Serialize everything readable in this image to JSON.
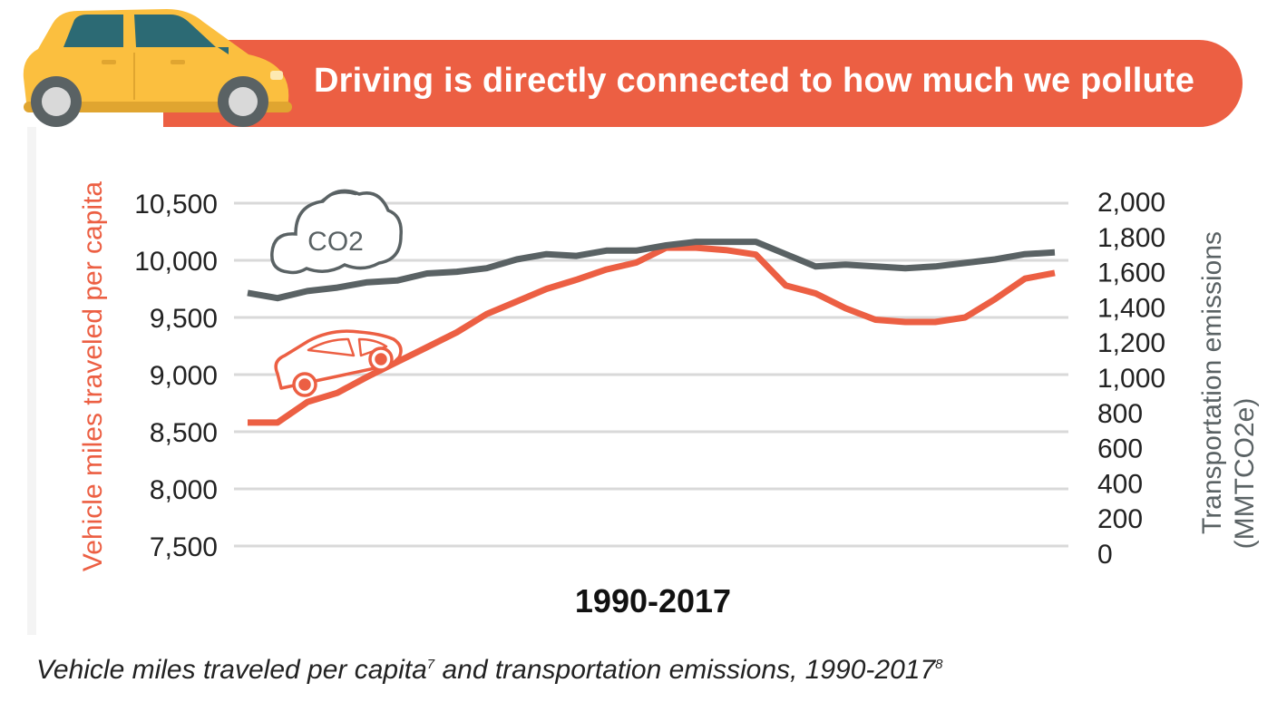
{
  "banner": {
    "title": "Driving is directly connected to how much we pollute"
  },
  "caption": {
    "text": "Vehicle miles traveled per capita",
    "sup1": "7",
    "text2": " and transportation emissions, 1990-2017",
    "sup2": "8"
  },
  "icons": {
    "car_hero": "yellow-car-icon",
    "cloud": "co2-cloud-icon",
    "car_outline": "car-outline-icon",
    "co2_text": "CO2"
  },
  "colors": {
    "vmt": "#ec5f43",
    "emissions": "#5a6264",
    "banner": "#ec5f43",
    "grid": "#d9d9d9",
    "car_body": "#fbbf3f"
  },
  "chart_data": {
    "type": "line",
    "xlabel": "1990-2017",
    "x": [
      1990,
      1991,
      1992,
      1993,
      1994,
      1995,
      1996,
      1997,
      1998,
      1999,
      2000,
      2001,
      2002,
      2003,
      2004,
      2005,
      2006,
      2007,
      2008,
      2009,
      2010,
      2011,
      2012,
      2013,
      2014,
      2015,
      2016,
      2017
    ],
    "left_axis": {
      "label": "Vehicle miles traveled per capita",
      "ylim": [
        7500,
        10500
      ],
      "ticks": [
        "10,500",
        "10,000",
        "9,500",
        "9,000",
        "8,500",
        "8,000",
        "7,500"
      ],
      "tick_values": [
        10500,
        10000,
        9500,
        9000,
        8500,
        8000,
        7500
      ]
    },
    "right_axis": {
      "label": "Transportation emissions",
      "label2": "(MMTCO2e)",
      "ylim": [
        0,
        2000
      ],
      "ticks": [
        "2,000",
        "1,800",
        "1,600",
        "1,400",
        "1,200",
        "1,000",
        "800",
        "600",
        "400",
        "200",
        "0"
      ],
      "tick_values": [
        2000,
        1800,
        1600,
        1400,
        1200,
        1000,
        800,
        600,
        400,
        200,
        0
      ]
    },
    "series": [
      {
        "key": "vmt",
        "axis": "left",
        "values": [
          8580,
          8580,
          8760,
          8840,
          8980,
          9110,
          9240,
          9370,
          9530,
          9640,
          9750,
          9830,
          9920,
          9980,
          10110,
          10110,
          10090,
          10050,
          9780,
          9710,
          9580,
          9480,
          9460,
          9460,
          9500,
          9660,
          9840,
          9890
        ]
      },
      {
        "key": "emissions",
        "axis": "right",
        "values": [
          1480,
          1450,
          1490,
          1510,
          1540,
          1550,
          1590,
          1600,
          1620,
          1670,
          1700,
          1690,
          1720,
          1720,
          1750,
          1770,
          1770,
          1770,
          1700,
          1630,
          1640,
          1630,
          1620,
          1630,
          1650,
          1670,
          1700,
          1710
        ]
      }
    ]
  }
}
